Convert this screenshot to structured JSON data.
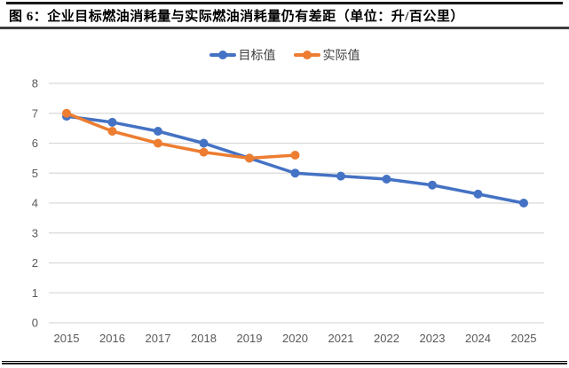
{
  "header": {
    "title": "图 6：企业目标燃油消耗量与实际燃油消耗量仍有差距（单位：升/百公里）"
  },
  "legend": {
    "items": [
      {
        "label": "目标值",
        "color": "#4472C4"
      },
      {
        "label": "实际值",
        "color": "#ED7D31"
      }
    ]
  },
  "chart_data": {
    "type": "line",
    "title": "企业目标燃油消耗量与实际燃油消耗量仍有差距",
    "unit": "升/百公里",
    "categories": [
      "2015",
      "2016",
      "2017",
      "2018",
      "2019",
      "2020",
      "2021",
      "2022",
      "2023",
      "2024",
      "2025"
    ],
    "series": [
      {
        "name": "目标值",
        "color": "#4472C4",
        "values": [
          6.9,
          6.7,
          6.4,
          6.0,
          5.5,
          5.0,
          4.9,
          4.8,
          4.6,
          4.3,
          4.0
        ]
      },
      {
        "name": "实际值",
        "color": "#ED7D31",
        "values": [
          7.0,
          6.4,
          6.0,
          5.7,
          5.5,
          5.6,
          null,
          null,
          null,
          null,
          null
        ]
      }
    ],
    "xlabel": "",
    "ylabel": "",
    "ylim": [
      0,
      8
    ],
    "yticks": [
      0,
      1,
      2,
      3,
      4,
      5,
      6,
      7,
      8
    ],
    "grid": true,
    "gridline_color": "#D9D9D9",
    "axis_label_color": "#595959",
    "legend_position": "top-center"
  }
}
